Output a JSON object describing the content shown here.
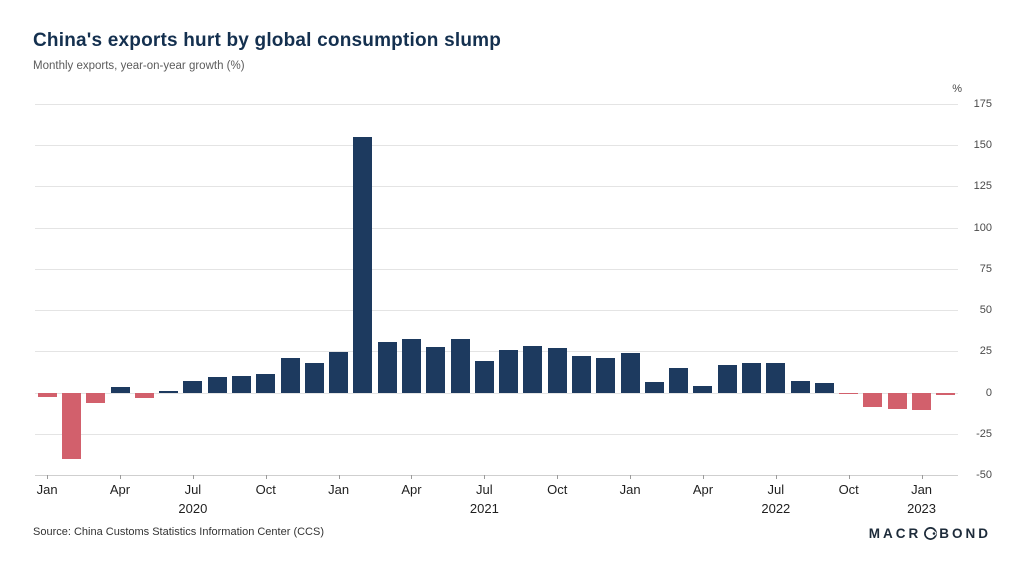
{
  "header": {
    "title": "China's exports hurt by global consumption slump",
    "subtitle": "Monthly exports, year-on-year growth (%)"
  },
  "footer": {
    "source": "Source: China Customs Statistics Information Center (CCS)",
    "brand_left": "MACR",
    "brand_right": "BOND"
  },
  "chart_data": {
    "type": "bar",
    "title": "China's exports hurt by global consumption slump",
    "subtitle": "Monthly exports, year-on-year growth (%)",
    "unit_label": "%",
    "ylim": [
      -50,
      175
    ],
    "yticks": [
      175,
      150,
      125,
      100,
      75,
      50,
      25,
      0,
      -25,
      -50
    ],
    "grid": true,
    "colors": {
      "positive": "#1d3a5f",
      "negative": "#d2606c"
    },
    "x": [
      "2020-01",
      "2020-02",
      "2020-03",
      "2020-04",
      "2020-05",
      "2020-06",
      "2020-07",
      "2020-08",
      "2020-09",
      "2020-10",
      "2020-11",
      "2020-12",
      "2021-01",
      "2021-02",
      "2021-03",
      "2021-04",
      "2021-05",
      "2021-06",
      "2021-07",
      "2021-08",
      "2021-09",
      "2021-10",
      "2021-11",
      "2021-12",
      "2022-01",
      "2022-02",
      "2022-03",
      "2022-04",
      "2022-05",
      "2022-06",
      "2022-07",
      "2022-08",
      "2022-09",
      "2022-10",
      "2022-11",
      "2022-12",
      "2023-01",
      "2023-02"
    ],
    "values": [
      -3.0,
      -40.6,
      -6.6,
      3.5,
      -3.3,
      0.5,
      7.2,
      9.5,
      9.9,
      11.4,
      21.1,
      18.1,
      24.8,
      154.9,
      30.6,
      32.3,
      27.9,
      32.2,
      19.3,
      25.6,
      28.1,
      27.1,
      22.0,
      20.9,
      24.1,
      6.3,
      14.7,
      3.9,
      16.9,
      17.9,
      18.0,
      7.1,
      5.7,
      -0.3,
      -8.7,
      -9.9,
      -10.5,
      -1.3
    ],
    "xticks": [
      {
        "label": "Jan",
        "index": 0
      },
      {
        "label": "Apr",
        "index": 3
      },
      {
        "label": "Jul",
        "index": 6
      },
      {
        "label": "Oct",
        "index": 9
      },
      {
        "label": "Jan",
        "index": 12
      },
      {
        "label": "Apr",
        "index": 15
      },
      {
        "label": "Jul",
        "index": 18
      },
      {
        "label": "Oct",
        "index": 21
      },
      {
        "label": "Jan",
        "index": 24
      },
      {
        "label": "Apr",
        "index": 27
      },
      {
        "label": "Jul",
        "index": 30
      },
      {
        "label": "Oct",
        "index": 33
      },
      {
        "label": "Jan",
        "index": 36
      }
    ],
    "year_labels": [
      {
        "label": "2020",
        "index": 6
      },
      {
        "label": "2021",
        "index": 18
      },
      {
        "label": "2022",
        "index": 30
      },
      {
        "label": "2023",
        "index": 36
      }
    ]
  }
}
